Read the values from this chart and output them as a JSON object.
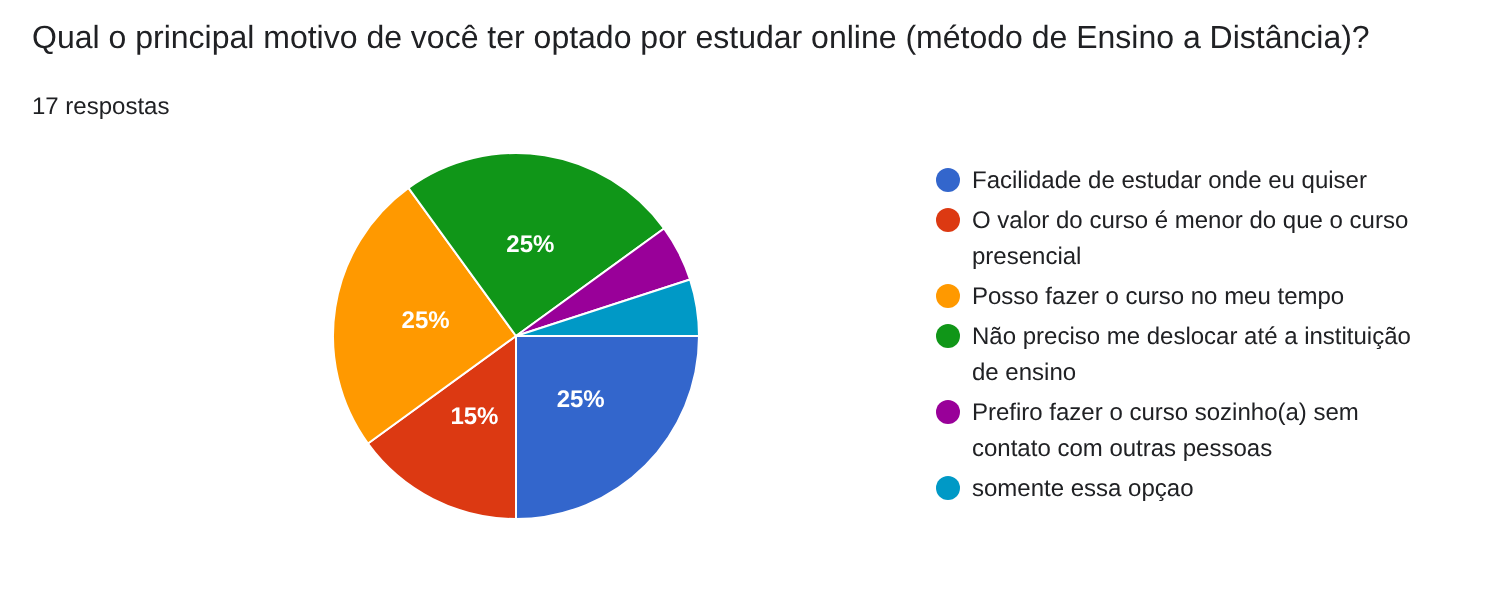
{
  "chart_data": {
    "type": "pie",
    "title": "Qual o principal motivo de você ter optado por estudar online (método de Ensino a Distância)?",
    "subtitle": "17 respostas",
    "categories": [
      "Facilidade de estudar onde eu quiser",
      "O valor do curso é menor do que o curso presencial",
      "Posso fazer o curso no meu tempo",
      "Não preciso me deslocar até a instituição de ensino",
      "Prefiro fazer o curso sozinho(a) sem contato com outras pessoas",
      "somente essa opçao"
    ],
    "values": [
      25,
      15,
      25,
      25,
      5,
      5
    ],
    "colors": [
      "#3366cc",
      "#dc3912",
      "#ff9900",
      "#109618",
      "#990099",
      "#0099c6"
    ],
    "value_labels": [
      "25%",
      "15%",
      "25%",
      "25%",
      null,
      null
    ],
    "legend": "right"
  }
}
